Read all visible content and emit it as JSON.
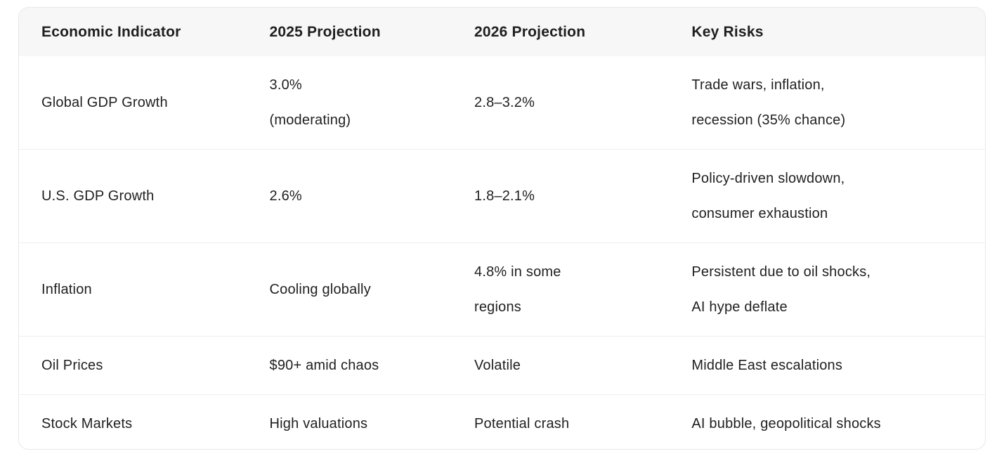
{
  "colors": {
    "page_bg": "#ffffff",
    "card_bg": "#ffffff",
    "card_border": "#e8e8e6",
    "header_bg": "#f6f7f6",
    "row_divider": "#eeeeec",
    "text": "#1f1f1e"
  },
  "table": {
    "columns": [
      "Economic Indicator",
      "2025 Projection",
      "2026 Projection",
      "Key Risks"
    ],
    "rows": [
      [
        "Global GDP Growth",
        "3.0%\n(moderating)",
        "2.8–3.2%",
        "Trade wars, inflation,\nrecession (35% chance)"
      ],
      [
        "U.S. GDP Growth",
        "2.6%",
        "1.8–2.1%",
        "Policy-driven slowdown,\nconsumer exhaustion"
      ],
      [
        "Inflation",
        "Cooling globally",
        "4.8% in some\nregions",
        "Persistent due to oil shocks,\nAI hype deflate"
      ],
      [
        "Oil Prices",
        "$90+ amid chaos",
        "Volatile",
        "Middle East escalations"
      ],
      [
        "Stock Markets",
        "High valuations",
        "Potential crash",
        "AI bubble, geopolitical shocks"
      ]
    ]
  },
  "chart_data": {
    "type": "table",
    "columns": [
      "Economic Indicator",
      "2025 Projection",
      "2026 Projection",
      "Key Risks"
    ],
    "rows": [
      [
        "Global GDP Growth",
        "3.0% (moderating)",
        "2.8–3.2%",
        "Trade wars, inflation, recession (35% chance)"
      ],
      [
        "U.S. GDP Growth",
        "2.6%",
        "1.8–2.1%",
        "Policy-driven slowdown, consumer exhaustion"
      ],
      [
        "Inflation",
        "Cooling globally",
        "4.8% in some regions",
        "Persistent due to oil shocks, AI hype deflate"
      ],
      [
        "Oil Prices",
        "$90+ amid chaos",
        "Volatile",
        "Middle East escalations"
      ],
      [
        "Stock Markets",
        "High valuations",
        "Potential crash",
        "AI bubble, geopolitical shocks"
      ]
    ],
    "layout": {
      "header_row": true,
      "grid": "horizontal-dividers",
      "legend": "none"
    }
  }
}
